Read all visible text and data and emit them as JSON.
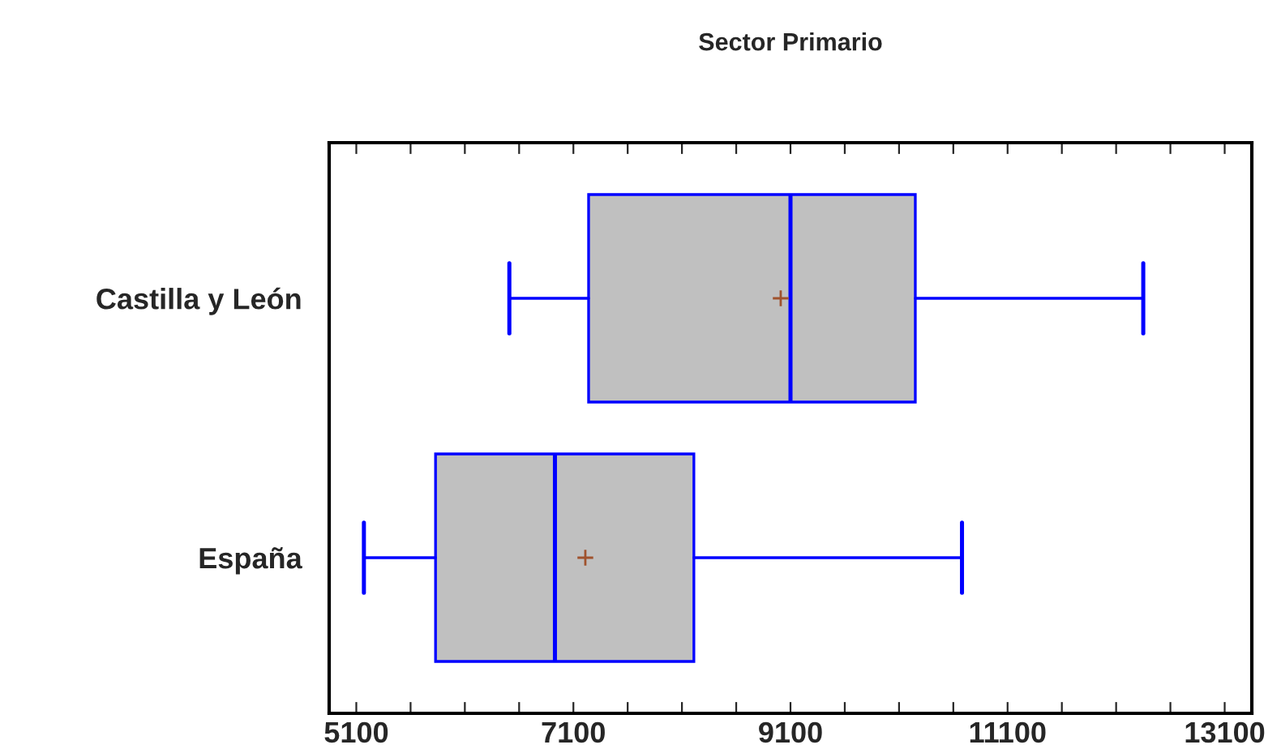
{
  "chart_data": {
    "type": "box",
    "title": "Sector Primario",
    "orientation": "horizontal",
    "categories": [
      "Castilla y León",
      "España"
    ],
    "boxes": [
      {
        "low": 6510,
        "q1": 7240,
        "median": 9100,
        "q3": 10250,
        "high": 12350,
        "mean": 9010
      },
      {
        "low": 5170,
        "q1": 5830,
        "median": 6930,
        "q3": 8210,
        "high": 10680,
        "mean": 7210
      }
    ],
    "color": "#c0c0c0",
    "xlim": [
      4850,
      13350
    ],
    "xticks": [
      5100,
      {
        "value": 5600,
        "label": null
      },
      {
        "value": 6100,
        "label": null
      },
      {
        "value": 6600,
        "label": null
      },
      7100,
      {
        "value": 7600,
        "label": null
      },
      {
        "value": 8100,
        "label": null
      },
      {
        "value": 8600,
        "label": null
      },
      9100,
      {
        "value": 9600,
        "label": null
      },
      {
        "value": 10100,
        "label": null
      },
      {
        "value": 10600,
        "label": null
      },
      11100,
      {
        "value": 11600,
        "label": null
      },
      {
        "value": 12100,
        "label": null
      },
      {
        "value": 12600,
        "label": null
      },
      13100
    ],
    "grid": false
  }
}
